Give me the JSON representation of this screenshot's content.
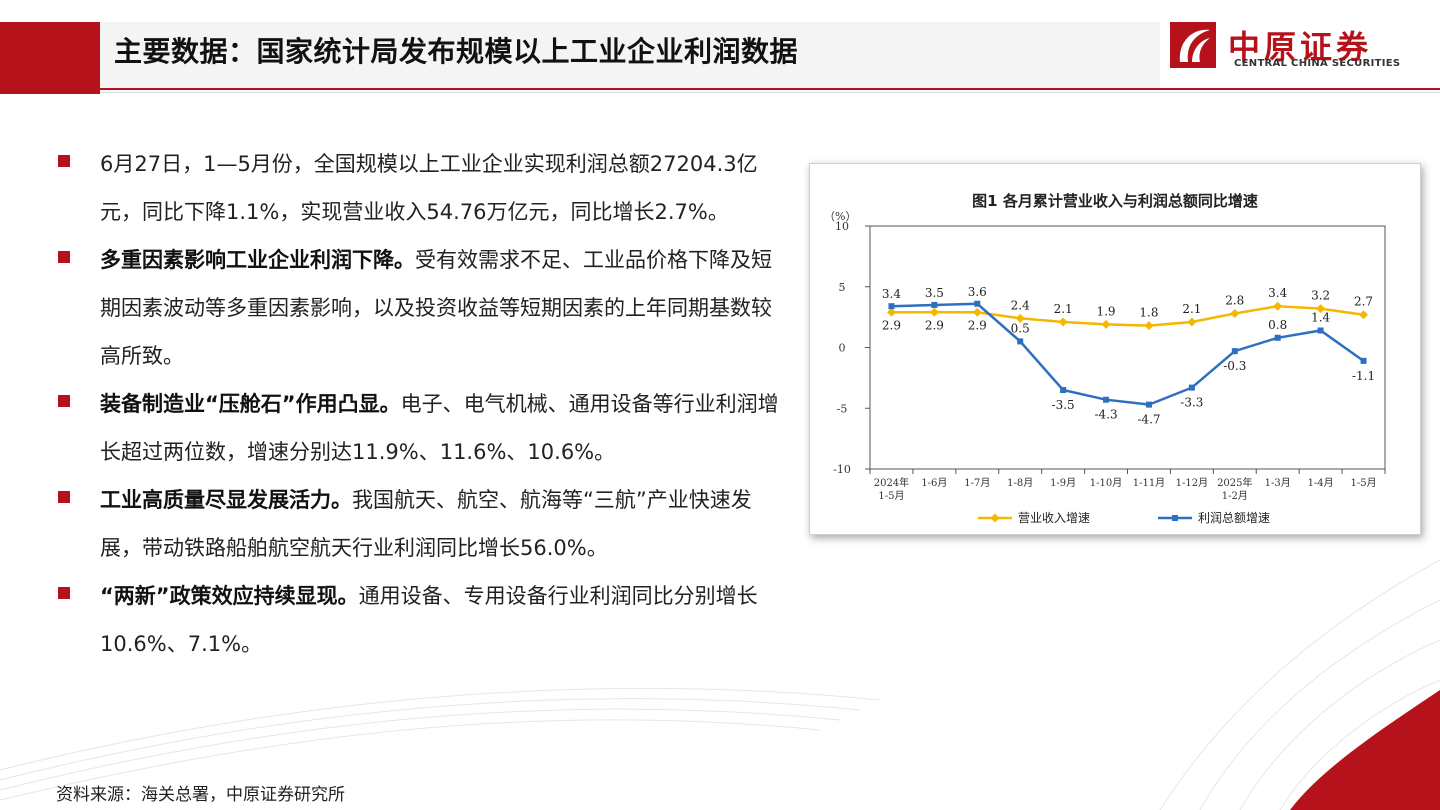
{
  "header": {
    "title": "主要数据：国家统计局发布规模以上工业企业利润数据"
  },
  "logo": {
    "name_cn": "中原证券",
    "name_en": "CENTRAL CHINA SECURITIES"
  },
  "bullets": [
    {
      "bold": "",
      "text": "6月27日，1—5月份，全国规模以上工业企业实现利润总额27204.3亿元，同比下降1.1%，实现营业收入54.76万亿元，同比增长2.7%。"
    },
    {
      "bold": "多重因素影响工业企业利润下降。",
      "text": "受有效需求不足、工业品价格下降及短期因素波动等多重因素影响，以及投资收益等短期因素的上年同期基数较高所致。"
    },
    {
      "bold": "装备制造业“压舱石”作用凸显。",
      "text": "电子、电气机械、通用设备等行业利润增长超过两位数，增速分别达11.9%、11.6%、10.6%。"
    },
    {
      "bold": "工业高质量尽显发展活力。",
      "text": "我国航天、航空、航海等“三航”产业快速发展，带动铁路船舶航空航天行业利润同比增长56.0%。"
    },
    {
      "bold": "“两新”政策效应持续显现。",
      "text": "通用设备、专用设备行业利润同比分别增长10.6%、7.1%。"
    }
  ],
  "source": "资料来源：海关总署，中原证券研究所",
  "colors": {
    "brand_red": "#b5121b",
    "revenue_series": "#f5b800",
    "profit_series": "#2e6fc0"
  },
  "chart_data": {
    "type": "line",
    "title": "图1  各月累计营业收入与利润总额同比增速",
    "y_unit": "（%）",
    "ylim": [
      -10,
      10
    ],
    "yticks": [
      "10",
      "5",
      "0",
      "-5",
      "-10"
    ],
    "categories": [
      [
        "2024年",
        "1-5月"
      ],
      [
        "1-6月"
      ],
      [
        "1-7月"
      ],
      [
        "1-8月"
      ],
      [
        "1-9月"
      ],
      [
        "1-10月"
      ],
      [
        "1-11月"
      ],
      [
        "1-12月"
      ],
      [
        "2025年",
        "1-2月"
      ],
      [
        "1-3月"
      ],
      [
        "1-4月"
      ],
      [
        "1-5月"
      ]
    ],
    "series": [
      {
        "name": "营业收入增速",
        "values": [
          2.9,
          2.9,
          2.9,
          2.4,
          2.1,
          1.9,
          1.8,
          2.1,
          2.8,
          3.4,
          3.2,
          2.7
        ],
        "labels": [
          "2.9",
          "2.9",
          "2.9",
          "2.4",
          "2.1",
          "1.9",
          "1.8",
          "2.1",
          "2.8",
          "3.4",
          "3.2",
          "2.7"
        ]
      },
      {
        "name": "利润总额增速",
        "values": [
          3.4,
          3.5,
          3.6,
          0.5,
          -3.5,
          -4.3,
          -4.7,
          -3.3,
          -0.3,
          0.8,
          1.4,
          -1.1
        ],
        "labels": [
          "3.4",
          "3.5",
          "3.6",
          "0.5",
          "-3.5",
          "-4.3",
          "-4.7",
          "-3.3",
          "-0.3",
          "0.8",
          "1.4",
          "-1.1"
        ]
      }
    ],
    "legend_position": "bottom",
    "grid": false
  }
}
